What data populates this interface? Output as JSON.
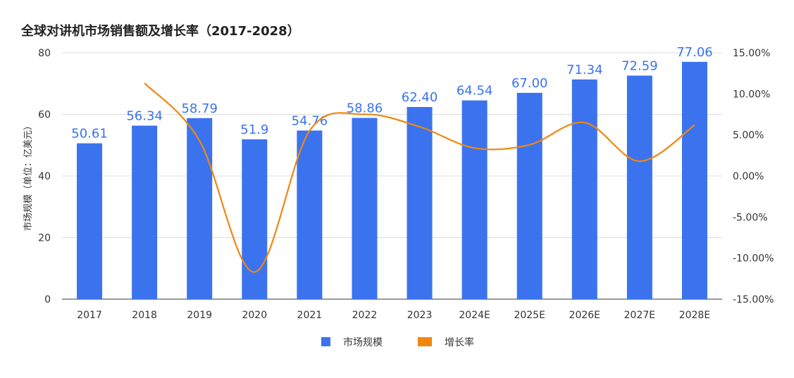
{
  "chart_data": {
    "type": "bar+line",
    "title": "全球对讲机市场销售额及增长率（2017-2028）",
    "ylabel": "市场规模（单位：亿美元）",
    "categories": [
      "2017",
      "2018",
      "2019",
      "2020",
      "2021",
      "2022",
      "2023",
      "2024E",
      "2025E",
      "2026E",
      "2027E",
      "2028E"
    ],
    "series": [
      {
        "name": "市场规模",
        "type": "bar",
        "axis": "left",
        "color": "#3b73ef",
        "values": [
          50.61,
          56.34,
          58.79,
          51.9,
          54.76,
          58.86,
          62.4,
          64.54,
          67.0,
          71.34,
          72.59,
          77.06
        ],
        "labels": [
          "50.61",
          "56.34",
          "58.79",
          "51.9",
          "54.76",
          "58.86",
          "62.40",
          "64.54",
          "67.00",
          "71.34",
          "72.59",
          "77.06"
        ]
      },
      {
        "name": "增长率",
        "type": "line",
        "axis": "right",
        "color": "#f0870f",
        "values": [
          null,
          11.3,
          4.3,
          -11.7,
          5.5,
          7.5,
          6.0,
          3.4,
          3.8,
          6.5,
          1.8,
          6.2
        ]
      }
    ],
    "y_left": {
      "min": 0,
      "max": 80,
      "ticks": [
        "0",
        "20",
        "40",
        "60",
        "80"
      ]
    },
    "y_right": {
      "min": -15,
      "max": 15,
      "ticks": [
        "-15.00%",
        "-10.00%",
        "-5.00%",
        "0.00%",
        "5.00%",
        "10.00%",
        "15.00%"
      ]
    },
    "grid": true,
    "legend": "bottom"
  }
}
